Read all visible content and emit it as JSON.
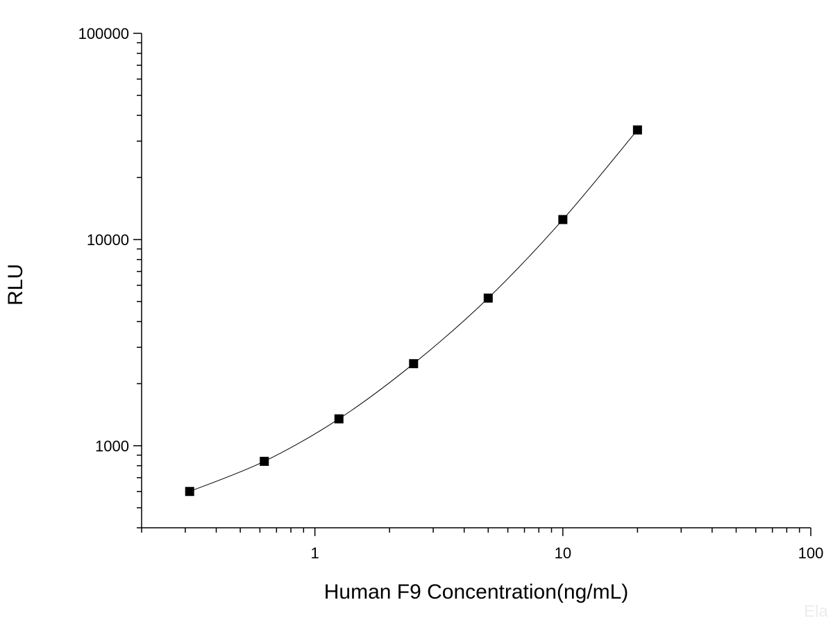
{
  "chart_data": {
    "type": "scatter",
    "title": "",
    "xlabel": "Human F9 Concentration(ng/mL)",
    "ylabel": "RLU",
    "xscale": "log",
    "yscale": "log",
    "xlim": [
      0.2,
      100
    ],
    "ylim": [
      400,
      100000
    ],
    "x_ticks": [
      1,
      10,
      100
    ],
    "x_tick_labels": [
      "1",
      "10",
      "100"
    ],
    "y_ticks": [
      1000,
      10000,
      100000
    ],
    "y_tick_labels": [
      "1000",
      "10000",
      "100000"
    ],
    "grid": false,
    "legend": "none",
    "marker": "square",
    "line": "smooth",
    "color": "#000000",
    "series": [
      {
        "x": [
          0.3125,
          0.625,
          1.25,
          2.5,
          5,
          10,
          20
        ],
        "y": [
          600,
          840,
          1350,
          2500,
          5200,
          12500,
          34000
        ]
      }
    ]
  },
  "watermark": "Ela"
}
